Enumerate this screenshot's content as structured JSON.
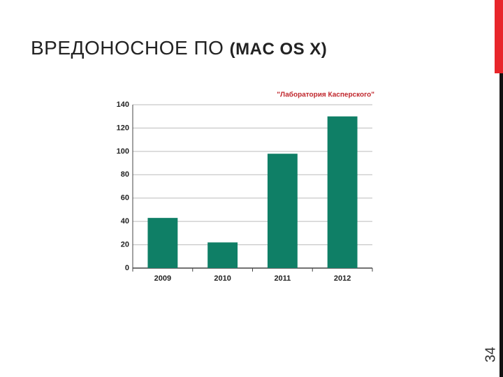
{
  "slide": {
    "title_main": "ВРЕДОНОСНОЕ ПО",
    "title_bold": "(MAC OS X)",
    "page_number": "34"
  },
  "chart_data": {
    "type": "bar",
    "annotation": "\"Лаборатория Касперского\"",
    "categories": [
      "2009",
      "2010",
      "2011",
      "2012"
    ],
    "values": [
      43,
      22,
      98,
      130
    ],
    "color": "#0f7f66",
    "ylim": [
      0,
      140
    ],
    "yticks": [
      0,
      20,
      40,
      60,
      80,
      100,
      120,
      140
    ],
    "grid": true
  }
}
